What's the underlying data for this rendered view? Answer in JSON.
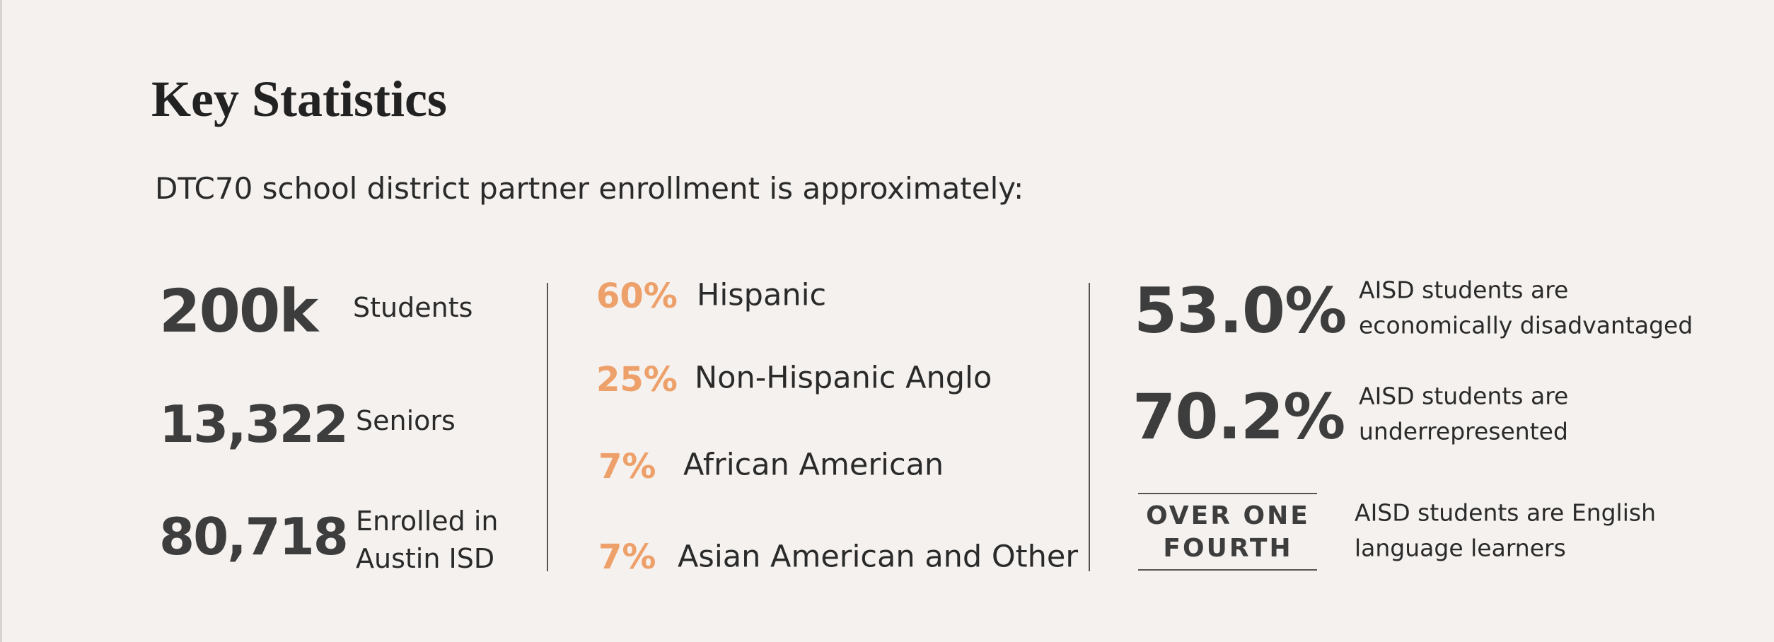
{
  "title": "Key Statistics",
  "intro": "DTC70 school district partner enrollment is approximately:",
  "enrollment": [
    {
      "value": "200k",
      "label": [
        "Students"
      ]
    },
    {
      "value": "13,322",
      "label": [
        "Seniors"
      ]
    },
    {
      "value": "80,718",
      "label": [
        "Enrolled in",
        "Austin ISD"
      ]
    }
  ],
  "demographics": [
    {
      "value": "60%",
      "label": "Hispanic"
    },
    {
      "value": "25%",
      "label": "Non-Hispanic Anglo"
    },
    {
      "value": "7%",
      "label": "African American"
    },
    {
      "value": "7%",
      "label": "Asian American and Other"
    }
  ],
  "aisd": [
    {
      "value": "53.0%",
      "label": [
        "AISD students are",
        "economically disadvantaged"
      ]
    },
    {
      "value": "70.2%",
      "label": [
        "AISD students are",
        "underrepresented"
      ]
    },
    {
      "value": [
        "OVER ONE",
        "FOURTH"
      ],
      "label": [
        "AISD students are English",
        "language learners"
      ]
    }
  ]
}
